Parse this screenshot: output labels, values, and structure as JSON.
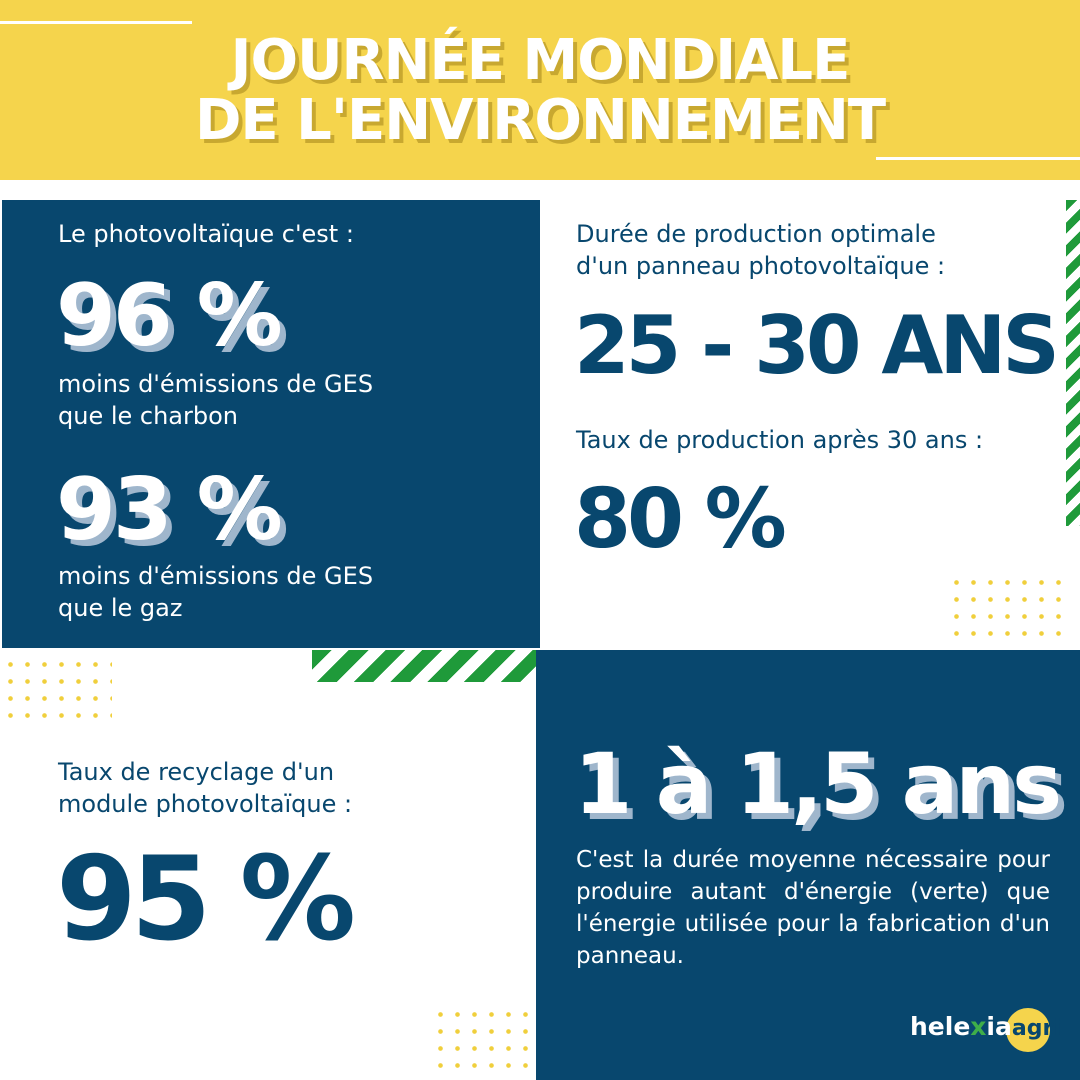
{
  "header": {
    "title_line1": "JOURNÉE MONDIALE",
    "title_line2": "DE L'ENVIRONNEMENT"
  },
  "panel_ges": {
    "intro": "Le photovoltaïque c'est :",
    "stat1": "96 %",
    "desc1_line1": "moins d'émissions de GES",
    "desc1_line2": "que le charbon",
    "stat2": "93 %",
    "desc2_line1": "moins d'émissions de GES",
    "desc2_line2": "que le gaz"
  },
  "panel_duration": {
    "label_line1": "Durée de production optimale",
    "label_line2": "d'un panneau photovoltaïque :",
    "stat": "25 - 30 ANS",
    "label2": "Taux de production après 30 ans :",
    "stat2": "80 %"
  },
  "panel_recycling": {
    "label_line1": "Taux de recyclage d'un",
    "label_line2": "module photovoltaïque :",
    "stat": "95 %"
  },
  "panel_payback": {
    "stat": "1 à 1,5 ans",
    "desc": "C'est la durée moyenne nécessaire pour produire autant d'énergie (verte) que l'énergie utilisée pour la fabrication d'un panneau."
  },
  "logo": {
    "part1": "hele",
    "part2": "x",
    "part3": "ia",
    "part4": "agri",
    "brand_navy": "#08476e",
    "brand_yellow": "#f5d44c",
    "brand_green": "#1f9a3a"
  }
}
